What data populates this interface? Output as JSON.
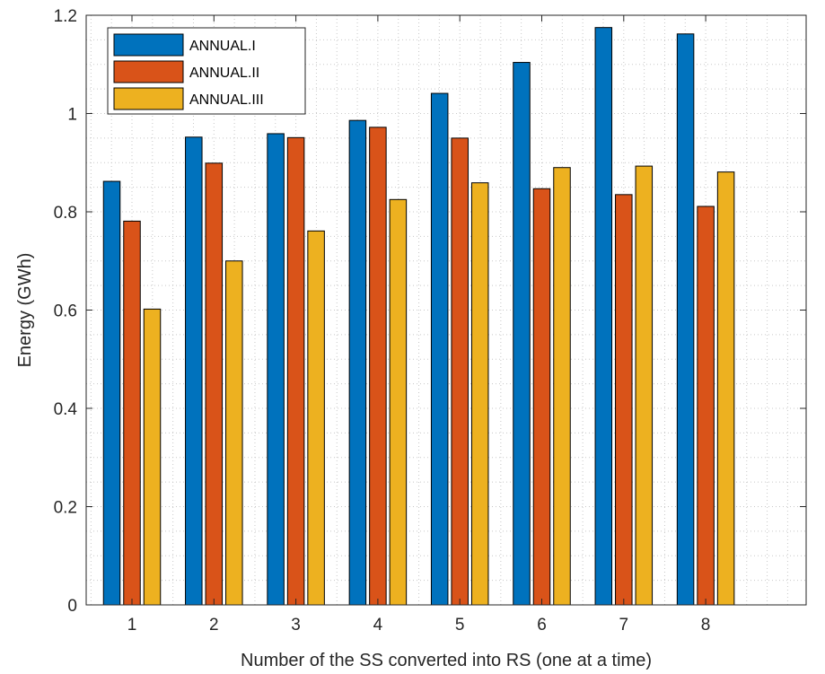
{
  "chart_data": {
    "type": "bar",
    "categories": [
      "1",
      "2",
      "3",
      "4",
      "5",
      "6",
      "7",
      "8"
    ],
    "series": [
      {
        "name": "ANNUAL.I",
        "color": "#0072BD",
        "values": [
          0.862,
          0.952,
          0.959,
          0.986,
          1.041,
          1.104,
          1.175,
          1.162
        ]
      },
      {
        "name": "ANNUAL.II",
        "color": "#D95319",
        "values": [
          0.781,
          0.899,
          0.951,
          0.972,
          0.95,
          0.847,
          0.835,
          0.811
        ]
      },
      {
        "name": "ANNUAL.III",
        "color": "#EDB120",
        "values": [
          0.602,
          0.7,
          0.761,
          0.825,
          0.859,
          0.89,
          0.893,
          0.881
        ]
      }
    ],
    "xlabel": "Number of the SS converted into RS (one at a time)",
    "ylabel": "Energy (GWh)",
    "ylim": [
      0,
      1.2
    ],
    "yticks": [
      "0",
      "0.2",
      "0.4",
      "0.6",
      "0.8",
      "1",
      "1.2"
    ],
    "grid": "minor-dotted",
    "legend_position": "top-left"
  }
}
